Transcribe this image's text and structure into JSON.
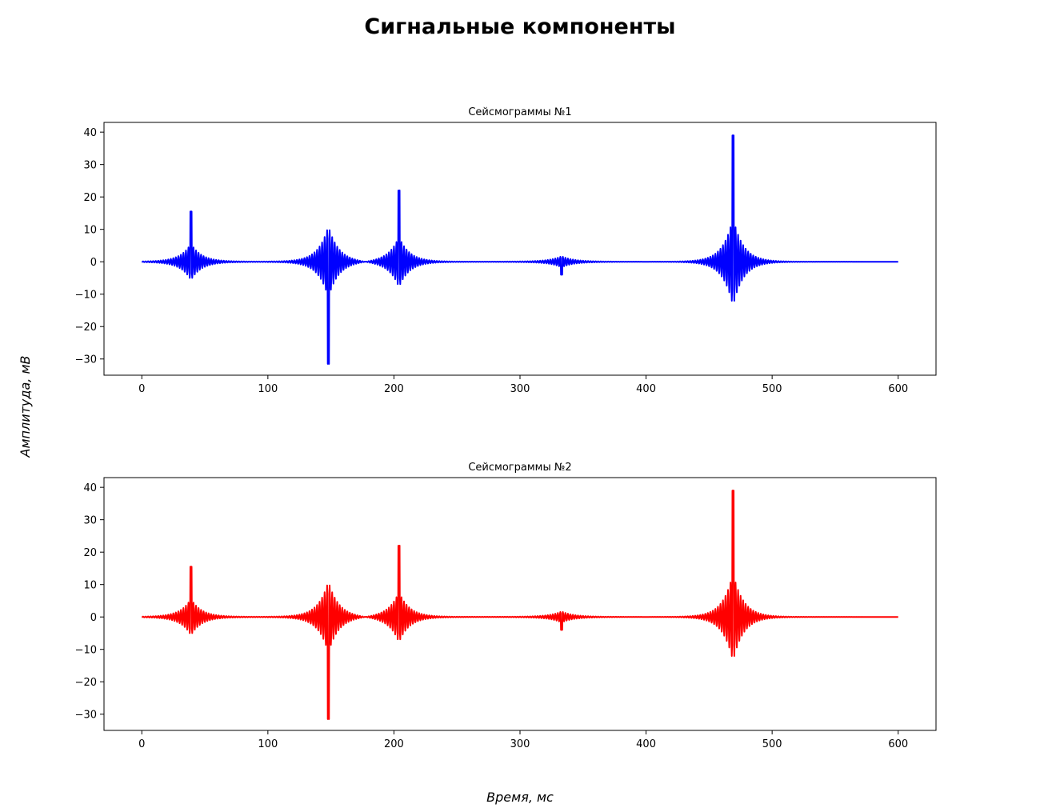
{
  "figure": {
    "title": "Сигнальные компоненты",
    "xlabel": "Время, мс",
    "ylabel": "Амплитуда, мВ"
  },
  "chart_data": [
    {
      "type": "line",
      "title": "Сейсмограммы №1",
      "color": "#0000ff",
      "xlim": [
        -30,
        630
      ],
      "ylim": [
        -35,
        43
      ],
      "xticks": [
        0,
        100,
        200,
        300,
        400,
        500,
        600
      ],
      "yticks": [
        -30,
        -20,
        -10,
        0,
        10,
        20,
        30,
        40
      ],
      "xtick_labels": [
        "0",
        "100",
        "200",
        "300",
        "400",
        "500",
        "600"
      ],
      "ytick_labels": [
        "−30",
        "−20",
        "−10",
        "0",
        "10",
        "20",
        "30",
        "40"
      ],
      "x_range": [
        0,
        600
      ],
      "pulses": [
        {
          "t": 39,
          "peak": 15.5,
          "trough": -5.5,
          "sign": 1
        },
        {
          "t": 148,
          "peak": 11,
          "trough": -31.5,
          "sign": -1
        },
        {
          "t": 204,
          "peak": 22,
          "trough": -7.5,
          "sign": 1
        },
        {
          "t": 333,
          "peak": 1.5,
          "trough": -4,
          "sign": -1
        },
        {
          "t": 469,
          "peak": 39,
          "trough": -14,
          "sign": 1
        }
      ]
    },
    {
      "type": "line",
      "title": "Сейсмограммы №2",
      "color": "#ff0000",
      "xlim": [
        -30,
        630
      ],
      "ylim": [
        -35,
        43
      ],
      "xticks": [
        0,
        100,
        200,
        300,
        400,
        500,
        600
      ],
      "yticks": [
        -30,
        -20,
        -10,
        0,
        10,
        20,
        30,
        40
      ],
      "xtick_labels": [
        "0",
        "100",
        "200",
        "300",
        "400",
        "500",
        "600"
      ],
      "ytick_labels": [
        "−30",
        "−20",
        "−10",
        "0",
        "10",
        "20",
        "30",
        "40"
      ],
      "x_range": [
        0,
        600
      ],
      "pulses": [
        {
          "t": 39,
          "peak": 15.5,
          "trough": -5.5,
          "sign": 1
        },
        {
          "t": 148,
          "peak": 11,
          "trough": -31.5,
          "sign": -1
        },
        {
          "t": 204,
          "peak": 22,
          "trough": -7.5,
          "sign": 1
        },
        {
          "t": 333,
          "peak": 1.5,
          "trough": -4,
          "sign": -1
        },
        {
          "t": 469,
          "peak": 39,
          "trough": -14,
          "sign": 1
        }
      ]
    }
  ]
}
